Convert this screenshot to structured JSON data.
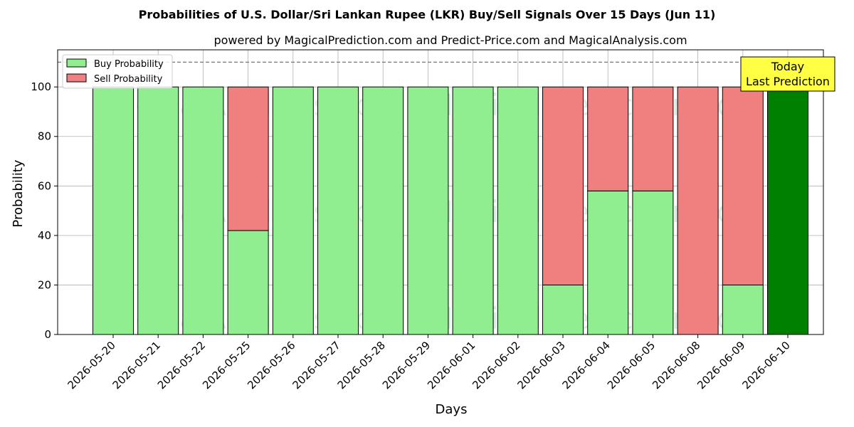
{
  "chart_data": {
    "type": "bar",
    "stacked": true,
    "title": "Probabilities of U.S. Dollar/Sri Lankan Rupee (LKR) Buy/Sell Signals Over 15 Days (Jun 11)",
    "subtitle": "powered by MagicalPrediction.com and Predict-Price.com and MagicalAnalysis.com",
    "xlabel": "Days",
    "ylabel": "Probability",
    "ylim": [
      0,
      115
    ],
    "yticks": [
      0,
      20,
      40,
      60,
      80,
      100
    ],
    "threshold_line": 110,
    "grid": true,
    "legend_position": "top-left",
    "categories": [
      "2026-05-20",
      "2026-05-21",
      "2026-05-22",
      "2026-05-25",
      "2026-05-26",
      "2026-05-27",
      "2026-05-28",
      "2026-05-29",
      "2026-06-01",
      "2026-06-02",
      "2026-06-03",
      "2026-06-04",
      "2026-06-05",
      "2026-06-08",
      "2026-06-09",
      "2026-06-10"
    ],
    "series": [
      {
        "name": "Buy Probability",
        "color": "#90ee90",
        "values": [
          100,
          100,
          100,
          42,
          100,
          100,
          100,
          100,
          100,
          100,
          20,
          58,
          58,
          0,
          20,
          100
        ]
      },
      {
        "name": "Sell Probability",
        "color": "#f08080",
        "values": [
          0,
          0,
          0,
          58,
          0,
          0,
          0,
          0,
          0,
          0,
          80,
          42,
          42,
          100,
          80,
          0
        ]
      }
    ],
    "highlight": {
      "index": 15,
      "color": "#008000"
    },
    "annotation": {
      "line1": "Today",
      "line2": "Last Prediction",
      "bg": "#ffff44"
    },
    "watermarks": [
      "MagicalAnalysis.com",
      "MagicalPrediction.com"
    ]
  }
}
